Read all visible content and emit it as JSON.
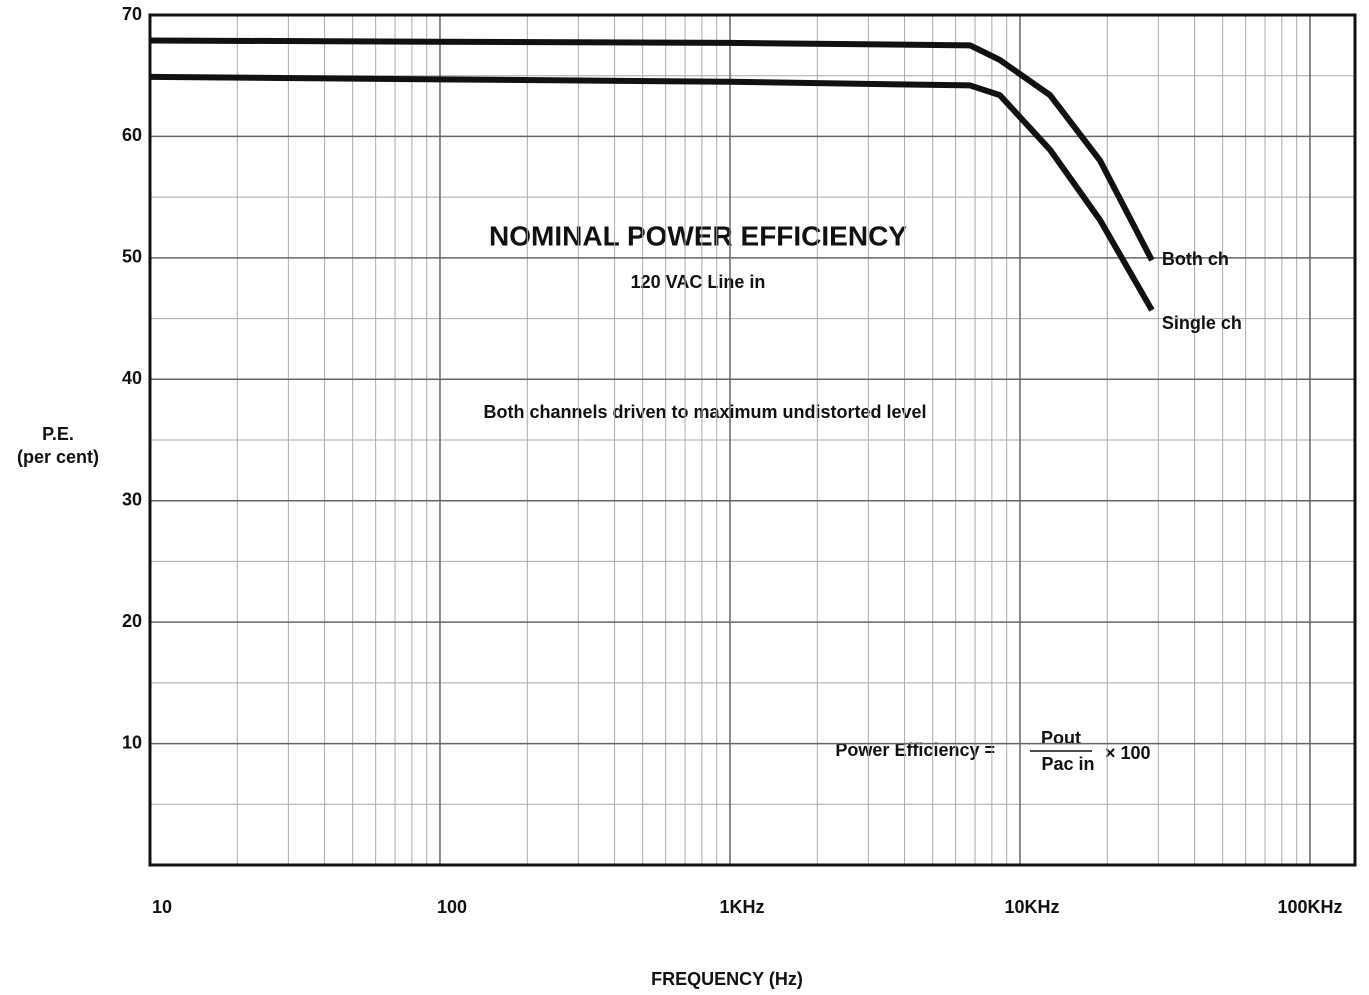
{
  "chart_data": {
    "type": "line",
    "title": "NOMINAL POWER EFFICIENCY",
    "subtitle": "120 VAC Line in",
    "annotations": [
      "Both channels driven to maximum undistorted level",
      "Power Efficiency =",
      "Pout",
      "Pac in",
      "× 100"
    ],
    "xlabel": "FREQUENCY (Hz)",
    "ylabel": [
      "P.E.",
      "(per cent)"
    ],
    "x": [
      10,
      100,
      1000,
      6730,
      8520,
      12700,
      18900,
      28500
    ],
    "series": [
      {
        "name": "Both ch",
        "color": "#111111",
        "values": [
          67.9,
          67.8,
          67.7,
          67.5,
          66.3,
          63.4,
          58.0,
          49.8
        ]
      },
      {
        "name": "Single ch",
        "color": "#111111",
        "values": [
          64.9,
          64.7,
          64.5,
          64.2,
          63.4,
          58.9,
          53.1,
          45.7
        ]
      }
    ],
    "xlog": true,
    "xlim": [
      10,
      143000
    ],
    "xticks": [
      10,
      100,
      {
        "value": 1000,
        "label": "1KHz"
      },
      {
        "value": 10000,
        "label": "10KHz"
      },
      {
        "value": 100000,
        "label": "100KHz"
      }
    ],
    "x_minor_ticks": [
      20,
      30,
      40,
      50,
      60,
      70,
      80,
      90,
      200,
      300,
      400,
      500,
      600,
      700,
      800,
      900,
      2000,
      3000,
      4000,
      5000,
      6000,
      7000,
      8000,
      9000,
      20000,
      30000,
      40000,
      50000,
      60000,
      70000,
      80000,
      90000
    ],
    "ylim": [
      0,
      70
    ],
    "yticks": [
      10,
      20,
      30,
      40,
      50,
      60,
      70
    ],
    "y_minor_ticks": [
      5,
      15,
      25,
      35,
      45,
      55,
      65
    ],
    "grid": true
  }
}
